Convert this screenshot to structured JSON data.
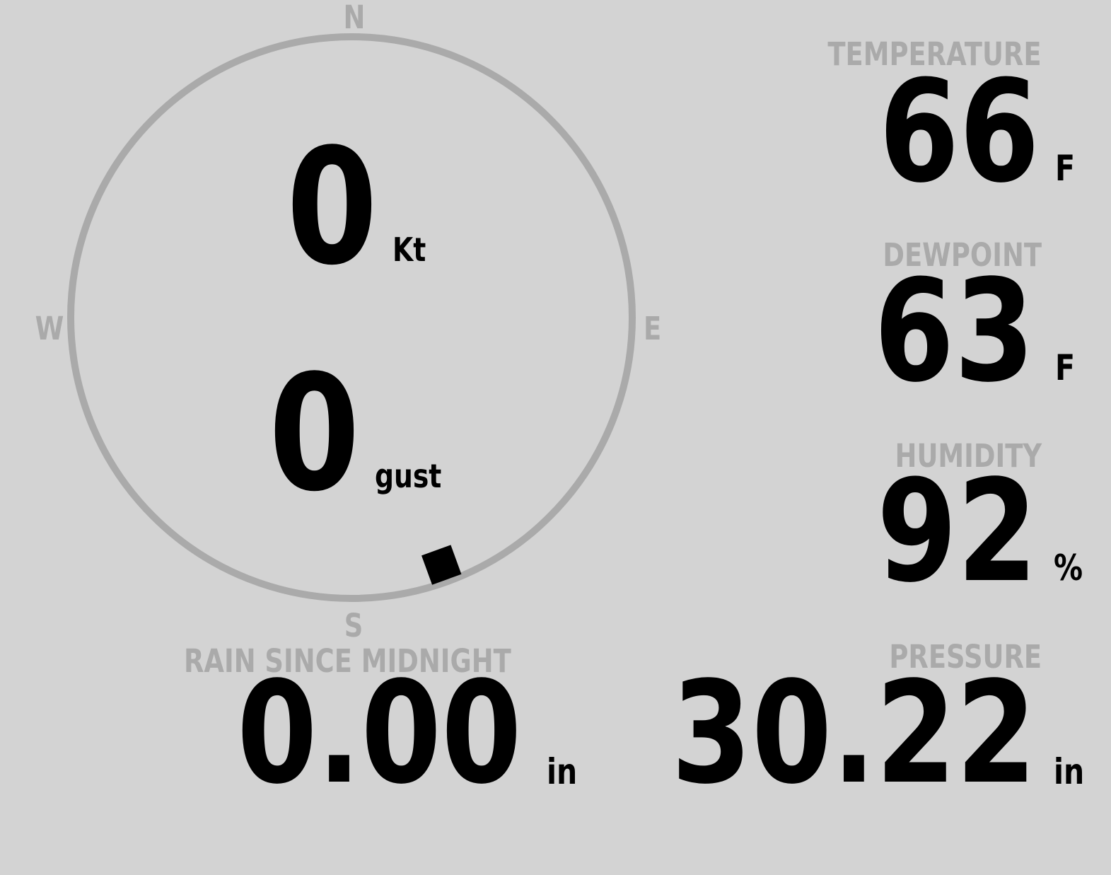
{
  "compass": {
    "north": "N",
    "east": "E",
    "south": "S",
    "west": "W",
    "wind_direction_deg": 160,
    "ring_color": "#aaaaaa"
  },
  "wind": {
    "speed": "0",
    "speed_unit": "Kt",
    "gust": "0",
    "gust_unit": "gust"
  },
  "temperature": {
    "label": "TEMPERATURE",
    "value": "66",
    "unit": "F"
  },
  "dewpoint": {
    "label": "DEWPOINT",
    "value": "63",
    "unit": "F"
  },
  "humidity": {
    "label": "HUMIDITY",
    "value": "92",
    "unit": "%"
  },
  "rain": {
    "label": "RAIN SINCE MIDNIGHT",
    "value": "0.00",
    "unit": "in"
  },
  "pressure": {
    "label": "PRESSURE",
    "value": "30.22",
    "unit": "in"
  },
  "colors": {
    "background": "#d3d3d3",
    "label": "#aaaaaa",
    "value": "#000000"
  }
}
